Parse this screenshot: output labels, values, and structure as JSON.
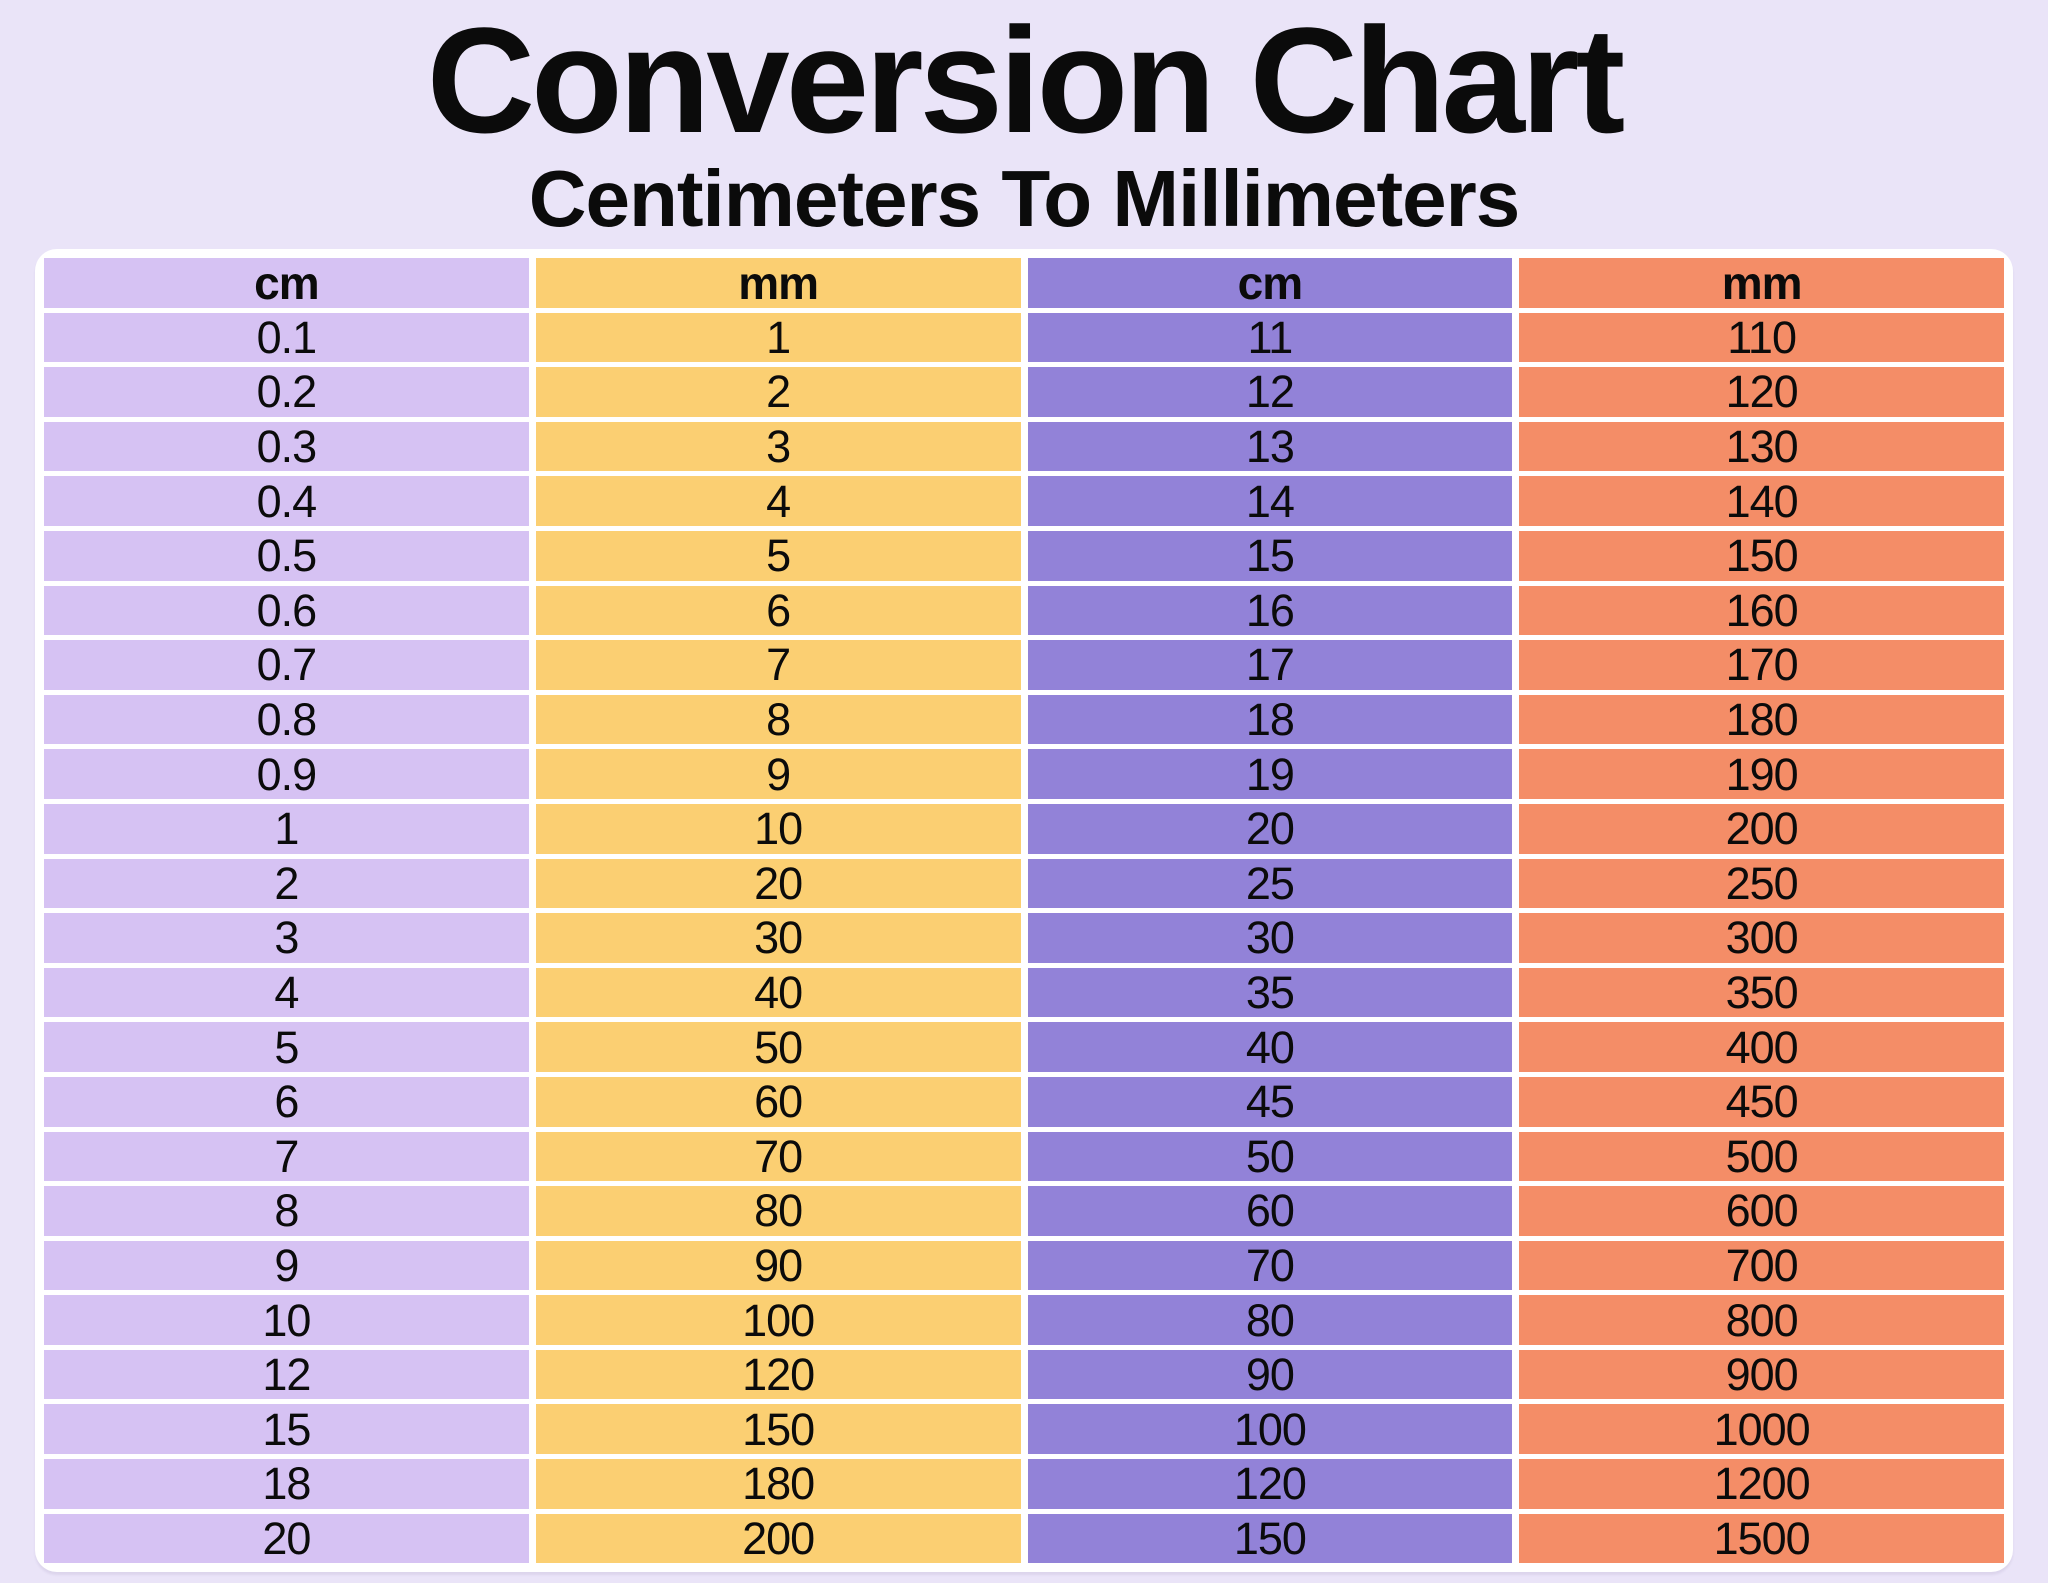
{
  "title": "Conversion Chart",
  "subtitle": "Centimeters To Millimeters",
  "colors": {
    "page_bg": "#EAE4F8",
    "card_bg": "#FFFFFF",
    "text": "#0B0B0B",
    "col_cm_left": "#D6C2F3",
    "col_mm_left": "#FBCF72",
    "col_cm_right": "#9282D8",
    "col_mm_right": "#F48D67"
  },
  "chart_data": {
    "type": "table",
    "title": "Conversion Chart",
    "subtitle": "Centimeters To Millimeters",
    "columns": [
      "cm",
      "mm",
      "cm",
      "mm"
    ],
    "column_colors": [
      "#D6C2F3",
      "#FBCF72",
      "#9282D8",
      "#F48D67"
    ],
    "rows": [
      [
        "0.1",
        "1",
        "11",
        "110"
      ],
      [
        "0.2",
        "2",
        "12",
        "120"
      ],
      [
        "0.3",
        "3",
        "13",
        "130"
      ],
      [
        "0.4",
        "4",
        "14",
        "140"
      ],
      [
        "0.5",
        "5",
        "15",
        "150"
      ],
      [
        "0.6",
        "6",
        "16",
        "160"
      ],
      [
        "0.7",
        "7",
        "17",
        "170"
      ],
      [
        "0.8",
        "8",
        "18",
        "180"
      ],
      [
        "0.9",
        "9",
        "19",
        "190"
      ],
      [
        "1",
        "10",
        "20",
        "200"
      ],
      [
        "2",
        "20",
        "25",
        "250"
      ],
      [
        "3",
        "30",
        "30",
        "300"
      ],
      [
        "4",
        "40",
        "35",
        "350"
      ],
      [
        "5",
        "50",
        "40",
        "400"
      ],
      [
        "6",
        "60",
        "45",
        "450"
      ],
      [
        "7",
        "70",
        "50",
        "500"
      ],
      [
        "8",
        "80",
        "60",
        "600"
      ],
      [
        "9",
        "90",
        "70",
        "700"
      ],
      [
        "10",
        "100",
        "80",
        "800"
      ],
      [
        "12",
        "120",
        "90",
        "900"
      ],
      [
        "15",
        "150",
        "100",
        "1000"
      ],
      [
        "18",
        "180",
        "120",
        "1200"
      ],
      [
        "20",
        "200",
        "150",
        "1500"
      ]
    ]
  }
}
